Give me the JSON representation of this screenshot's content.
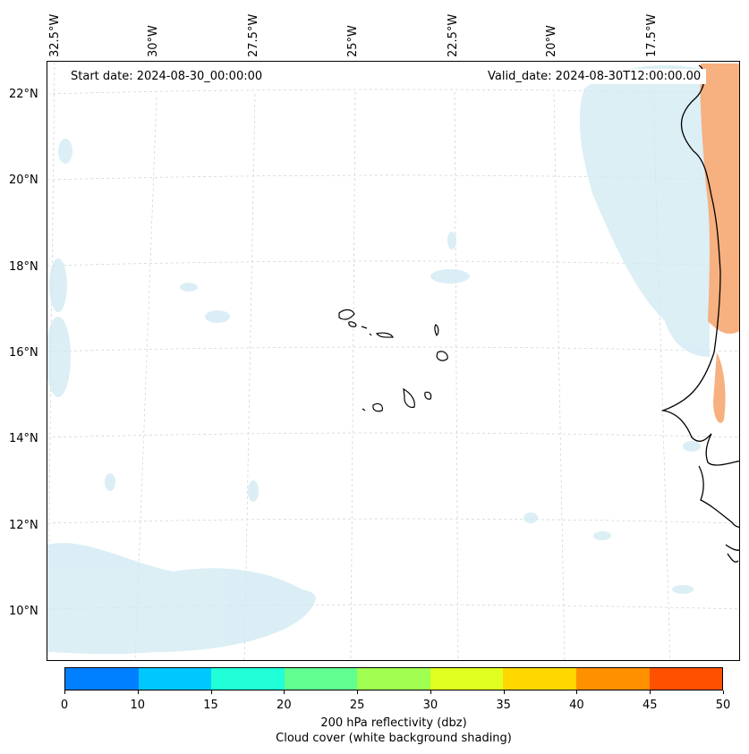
{
  "map": {
    "start_date": "Start date: 2024-08-30_00:00:00",
    "valid_date": "Valid_date: 2024-08-30T12:00:00.00",
    "longitude_labels": [
      "32.5°W",
      "30°W",
      "27.5°W",
      "25°W",
      "22.5°W",
      "20°W",
      "17.5°W"
    ],
    "latitude_labels": [
      "22°N",
      "20°N",
      "18°N",
      "16°N",
      "14°N",
      "12°N",
      "10°N"
    ],
    "gridlines": true,
    "coastline_color": "#000000",
    "cloud_shading_color": "#bfe3ee",
    "reflectivity_shading_color": "#f6a26b"
  },
  "colorbar": {
    "ticks": [
      "0",
      "10",
      "15",
      "20",
      "25",
      "30",
      "35",
      "40",
      "45",
      "50"
    ],
    "colors": [
      "#0080ff",
      "#00c8ff",
      "#20ffd8",
      "#60ff90",
      "#a0ff50",
      "#e0ff20",
      "#ffd800",
      "#ff9000",
      "#ff5000"
    ],
    "label_line1": "200 hPa reflectivity (dbz)",
    "label_line2": "Cloud cover (white background shading)"
  }
}
